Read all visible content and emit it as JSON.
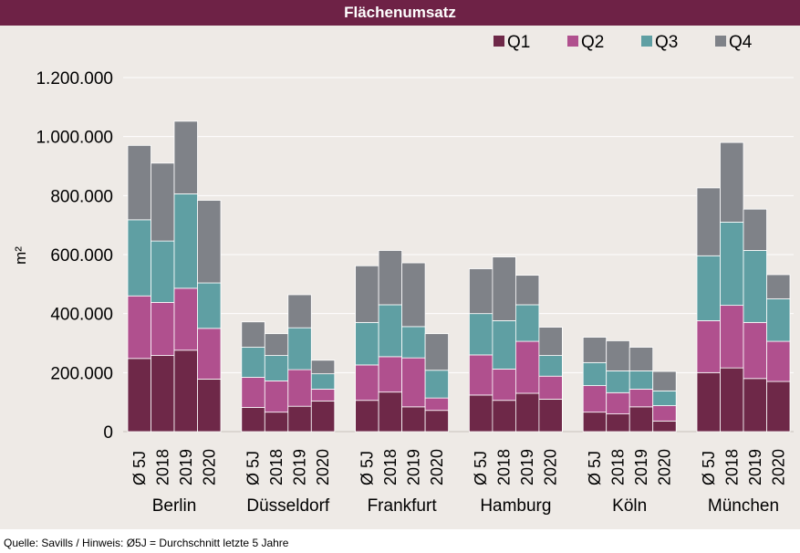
{
  "source_note": "Quelle: Savills / Hinweis: Ø5J = Durchschnitt letzte 5 Jahre",
  "colors": {
    "title_bg": "#6e2246",
    "plot_bg": "#eeeae6",
    "Q1": "#6e2848",
    "Q2": "#b0508e",
    "Q3": "#5f9fa3",
    "Q4": "#7f8288"
  },
  "chart_data": {
    "type": "bar",
    "stacked": true,
    "title": "Flächenumsatz",
    "xlabel": "",
    "ylabel": "m²",
    "ylim": [
      0,
      1200000
    ],
    "yticks": [
      0,
      200000,
      400000,
      600000,
      800000,
      1000000,
      1200000
    ],
    "ytick_labels": [
      "0",
      "200.000",
      "400.000",
      "600.000",
      "800.000",
      "1.000.000",
      "1.200.000"
    ],
    "grid": true,
    "legend_position": "top-right",
    "series_names": [
      "Q1",
      "Q2",
      "Q3",
      "Q4"
    ],
    "period_labels": [
      "Ø 5J",
      "2018",
      "2019",
      "2020"
    ],
    "groups": [
      {
        "city": "Berlin",
        "bars": [
          {
            "label": "Ø 5J",
            "values": [
              248000,
              212000,
              258000,
              252000
            ]
          },
          {
            "label": "2018",
            "values": [
              258000,
              180000,
              208000,
              264000
            ]
          },
          {
            "label": "2019",
            "values": [
              276000,
              210000,
              320000,
              246000
            ]
          },
          {
            "label": "2020",
            "values": [
              178000,
              172000,
              154000,
              280000
            ]
          }
        ]
      },
      {
        "city": "Düsseldorf",
        "bars": [
          {
            "label": "Ø 5J",
            "values": [
              82000,
              102000,
              102000,
              86000
            ]
          },
          {
            "label": "2018",
            "values": [
              66000,
              106000,
              86000,
              74000
            ]
          },
          {
            "label": "2019",
            "values": [
              86000,
              124000,
              142000,
              112000
            ]
          },
          {
            "label": "2020",
            "values": [
              104000,
              40000,
              52000,
              46000
            ]
          }
        ]
      },
      {
        "city": "Frankfurt",
        "bars": [
          {
            "label": "Ø 5J",
            "values": [
              106000,
              120000,
              144000,
              192000
            ]
          },
          {
            "label": "2018",
            "values": [
              134000,
              120000,
              176000,
              184000
            ]
          },
          {
            "label": "2019",
            "values": [
              84000,
              166000,
              106000,
              216000
            ]
          },
          {
            "label": "2020",
            "values": [
              72000,
              42000,
              94000,
              124000
            ]
          }
        ]
      },
      {
        "city": "Hamburg",
        "bars": [
          {
            "label": "Ø 5J",
            "values": [
              124000,
              136000,
              140000,
              152000
            ]
          },
          {
            "label": "2018",
            "values": [
              106000,
              106000,
              164000,
              216000
            ]
          },
          {
            "label": "2019",
            "values": [
              130000,
              176000,
              124000,
              100000
            ]
          },
          {
            "label": "2020",
            "values": [
              110000,
              78000,
              70000,
              96000
            ]
          }
        ]
      },
      {
        "city": "Köln",
        "bars": [
          {
            "label": "Ø 5J",
            "values": [
              66000,
              90000,
              78000,
              86000
            ]
          },
          {
            "label": "2018",
            "values": [
              60000,
              72000,
              74000,
              102000
            ]
          },
          {
            "label": "2019",
            "values": [
              84000,
              60000,
              62000,
              80000
            ]
          },
          {
            "label": "2020",
            "values": [
              36000,
              52000,
              50000,
              66000
            ]
          }
        ]
      },
      {
        "city": "München",
        "bars": [
          {
            "label": "Ø 5J",
            "values": [
              200000,
              176000,
              220000,
              230000
            ]
          },
          {
            "label": "2018",
            "values": [
              216000,
              212000,
              282000,
              270000
            ]
          },
          {
            "label": "2019",
            "values": [
              180000,
              190000,
              244000,
              140000
            ]
          },
          {
            "label": "2020",
            "values": [
              170000,
              136000,
              144000,
              82000
            ]
          }
        ]
      }
    ]
  }
}
